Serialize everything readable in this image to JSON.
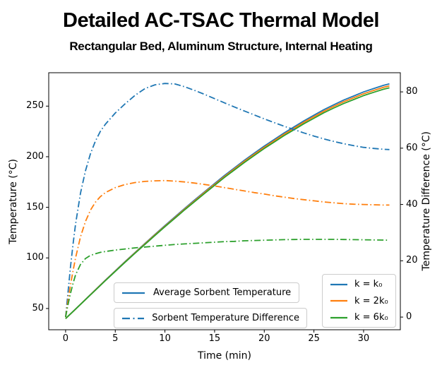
{
  "header": {
    "title": "Detailed AC-TSAC Thermal Model",
    "subtitle": "Rectangular Bed, Aluminum Structure, Internal Heating"
  },
  "colors": {
    "k0": "#1f77b4",
    "k2": "#ff7f0e",
    "k6": "#2ca02c",
    "spine": "#000000",
    "legend_border": "#cccccc"
  },
  "legend_line_style": {
    "items": [
      {
        "label": "Average Sorbent Temperature",
        "style": "solid",
        "color": "#1f77b4"
      },
      {
        "label": "Sorbent Temperature Difference",
        "style": "dashdot",
        "color": "#1f77b4"
      }
    ]
  },
  "legend_conductivity": {
    "items": [
      {
        "label": "k = k₀",
        "color": "#1f77b4"
      },
      {
        "label": "k = 2k₀",
        "color": "#ff7f0e"
      },
      {
        "label": "k = 6k₀",
        "color": "#2ca02c"
      }
    ]
  },
  "chart_data": {
    "type": "line",
    "title": "Detailed AC-TSAC Thermal Model",
    "subtitle": "Rectangular Bed, Aluminum Structure, Internal Heating",
    "grid": false,
    "x_axis": {
      "label": "Time (min)",
      "ticks": [
        0,
        5,
        10,
        15,
        20,
        25,
        30
      ],
      "range": [
        -1.7,
        33.7
      ]
    },
    "y_left": {
      "label": "Temperature (°C)",
      "ticks": [
        50,
        100,
        150,
        200,
        250
      ],
      "range": [
        29,
        283
      ]
    },
    "y_right": {
      "label": "Temperature Difference (°C)",
      "ticks": [
        0,
        20,
        40,
        60,
        80
      ],
      "range": [
        -4.5,
        86.8
      ]
    },
    "series": [
      {
        "name": "Average Sorbent Temperature, k = k0",
        "axis": "left",
        "style": "solid",
        "color": "#1f77b4",
        "x": [
          0,
          1,
          2,
          3,
          4,
          5,
          6,
          7,
          8,
          9,
          10,
          11,
          12,
          13,
          14,
          15,
          16,
          17,
          18,
          19,
          20,
          21,
          22,
          23,
          24,
          25,
          26,
          27,
          28,
          29,
          30,
          31,
          32,
          32.6
        ],
        "y": [
          40,
          49.5,
          59,
          68.5,
          78,
          87.3,
          96.5,
          105.5,
          114.5,
          123.3,
          132,
          140.5,
          149,
          157.3,
          165.5,
          173.5,
          181.5,
          189,
          196.5,
          203.5,
          210.5,
          217,
          223.5,
          229.5,
          235.5,
          241,
          246.5,
          251.3,
          256,
          260,
          264,
          267.3,
          270.5,
          272
        ]
      },
      {
        "name": "Average Sorbent Temperature, k = 2k0",
        "axis": "left",
        "style": "solid",
        "color": "#ff7f0e",
        "x": [
          0,
          1,
          2,
          3,
          4,
          5,
          6,
          7,
          8,
          9,
          10,
          11,
          12,
          13,
          14,
          15,
          16,
          17,
          18,
          19,
          20,
          21,
          22,
          23,
          24,
          25,
          26,
          27,
          28,
          29,
          30,
          31,
          32,
          32.6
        ],
        "y": [
          40,
          49.4,
          58.9,
          68.3,
          77.8,
          87,
          96.1,
          105.1,
          114,
          122.8,
          131.4,
          139.8,
          148.3,
          156.5,
          164.7,
          172.6,
          180.5,
          188,
          195.4,
          202.4,
          209.3,
          215.7,
          222.2,
          228.1,
          234.1,
          239.5,
          244.9,
          249.7,
          254.3,
          258.3,
          262.2,
          265.4,
          268.6,
          270
        ]
      },
      {
        "name": "Average Sorbent Temperature, k = 6k0",
        "axis": "left",
        "style": "solid",
        "color": "#2ca02c",
        "x": [
          0,
          1,
          2,
          3,
          4,
          5,
          6,
          7,
          8,
          9,
          10,
          11,
          12,
          13,
          14,
          15,
          16,
          17,
          18,
          19,
          20,
          21,
          22,
          23,
          24,
          25,
          26,
          27,
          28,
          29,
          30,
          31,
          32,
          32.6
        ],
        "y": [
          40,
          49.4,
          58.8,
          68.1,
          77.5,
          86.7,
          95.8,
          104.7,
          113.5,
          122.2,
          130.8,
          139.2,
          147.6,
          155.7,
          163.8,
          171.7,
          179.6,
          187,
          194.3,
          201.2,
          208.1,
          214.5,
          220.9,
          226.7,
          232.6,
          238,
          243.4,
          248.1,
          252.6,
          256.5,
          260.4,
          263.6,
          266.7,
          268.1
        ]
      },
      {
        "name": "Sorbent Temperature Difference, k = k0",
        "axis": "right",
        "style": "dashdot",
        "color": "#1f77b4",
        "x": [
          0,
          0.25,
          0.5,
          0.75,
          1,
          1.5,
          2,
          2.5,
          3,
          3.5,
          4,
          5,
          6,
          7,
          8,
          9,
          10,
          11,
          12,
          13,
          14,
          15,
          16,
          17,
          18,
          19,
          20,
          21,
          22,
          23,
          24,
          25,
          26,
          27,
          28,
          29,
          30,
          31,
          32,
          32.6
        ],
        "y": [
          0,
          9,
          18,
          26,
          33,
          44,
          52,
          58,
          62.5,
          66,
          68.5,
          72.5,
          75.8,
          78.8,
          81.2,
          82.5,
          83,
          82.8,
          81.8,
          80.5,
          79.1,
          77.6,
          76.1,
          74.6,
          73.2,
          71.8,
          70.4,
          69.1,
          67.8,
          66.6,
          65.4,
          64.3,
          63.3,
          62.4,
          61.6,
          60.9,
          60.3,
          59.9,
          59.6,
          59.5
        ]
      },
      {
        "name": "Sorbent Temperature Difference, k = 2k0",
        "axis": "right",
        "style": "dashdot",
        "color": "#ff7f0e",
        "x": [
          0,
          0.25,
          0.5,
          0.75,
          1,
          1.5,
          2,
          2.5,
          3,
          3.5,
          4,
          5,
          6,
          7,
          8,
          9,
          10,
          11,
          12,
          13,
          14,
          15,
          16,
          17,
          18,
          19,
          20,
          21,
          22,
          23,
          24,
          25,
          26,
          27,
          28,
          29,
          30,
          31,
          32,
          32.6
        ],
        "y": [
          0,
          6,
          11.5,
          16.5,
          21,
          28.5,
          34,
          38,
          40.8,
          42.8,
          44.2,
          46,
          47.1,
          47.8,
          48.2,
          48.4,
          48.5,
          48.3,
          48,
          47.6,
          47.1,
          46.6,
          46,
          45.4,
          44.8,
          44.2,
          43.7,
          43.1,
          42.6,
          42.1,
          41.7,
          41.3,
          40.9,
          40.6,
          40.3,
          40.1,
          40,
          39.9,
          39.8,
          39.8
        ]
      },
      {
        "name": "Sorbent Temperature Difference, k = 6k0",
        "axis": "right",
        "style": "dashdot",
        "color": "#2ca02c",
        "x": [
          0,
          0.25,
          0.5,
          0.75,
          1,
          1.5,
          2,
          2.5,
          3,
          3.5,
          4,
          5,
          6,
          7,
          8,
          9,
          10,
          11,
          12,
          13,
          14,
          15,
          16,
          17,
          18,
          19,
          20,
          21,
          22,
          23,
          24,
          25,
          26,
          27,
          28,
          29,
          30,
          31,
          32,
          32.6
        ],
        "y": [
          0,
          4.5,
          8.5,
          12,
          15,
          18.7,
          20.8,
          21.9,
          22.5,
          23,
          23.3,
          23.8,
          24.2,
          24.6,
          24.9,
          25.2,
          25.5,
          25.8,
          26,
          26.2,
          26.4,
          26.6,
          26.8,
          26.9,
          27.1,
          27.2,
          27.3,
          27.4,
          27.5,
          27.55,
          27.6,
          27.6,
          27.6,
          27.6,
          27.55,
          27.5,
          27.45,
          27.4,
          27.35,
          27.3
        ]
      }
    ]
  }
}
